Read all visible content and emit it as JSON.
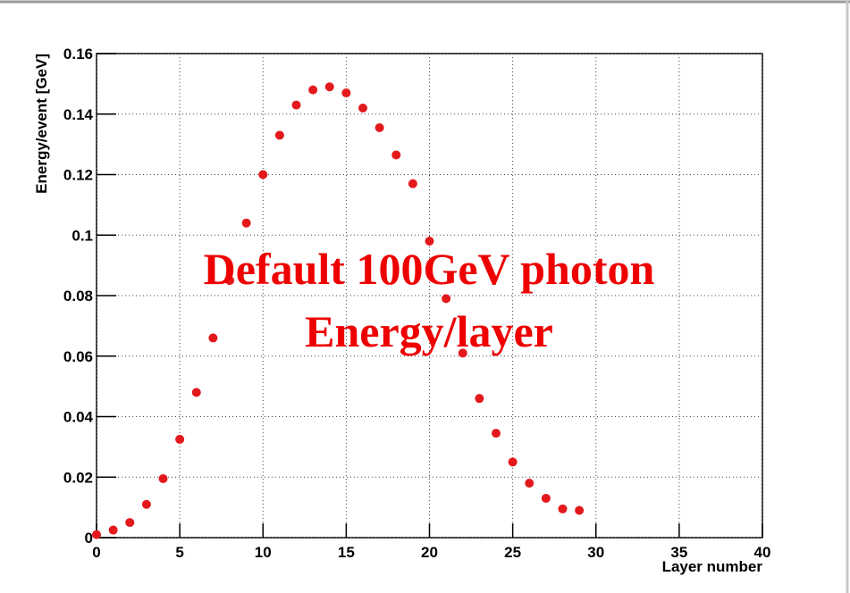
{
  "chart_data": {
    "type": "scatter",
    "x_label": "Layer number",
    "y_label": "Energy/event [GeV]",
    "annotations": [
      "Default 100GeV photon",
      "Energy/layer"
    ],
    "grid": true,
    "series": [
      {
        "color": "#e3191c",
        "x": [
          0,
          1,
          2,
          3,
          4,
          5,
          6,
          7,
          8,
          9,
          10,
          11,
          12,
          13,
          14,
          15,
          16,
          17,
          18,
          19,
          20,
          21,
          22,
          23,
          24,
          25,
          26,
          27,
          28,
          29
        ],
        "values": [
          0.001,
          0.0025,
          0.005,
          0.011,
          0.0195,
          0.0325,
          0.048,
          0.066,
          0.085,
          0.104,
          0.12,
          0.133,
          0.143,
          0.148,
          0.149,
          0.147,
          0.142,
          0.1355,
          0.1265,
          0.117,
          0.098,
          0.079,
          0.061,
          0.046,
          0.0345,
          0.025,
          0.018,
          0.013,
          0.0095,
          0.009
        ]
      }
    ],
    "xlim": [
      0,
      40
    ],
    "ylim": [
      0,
      0.16
    ],
    "xticks": [
      0,
      5,
      10,
      15,
      20,
      25,
      30,
      35,
      40
    ],
    "yticks": [
      0,
      0.02,
      0.04,
      0.06,
      0.08,
      0.1,
      0.12,
      0.14,
      0.16
    ]
  }
}
